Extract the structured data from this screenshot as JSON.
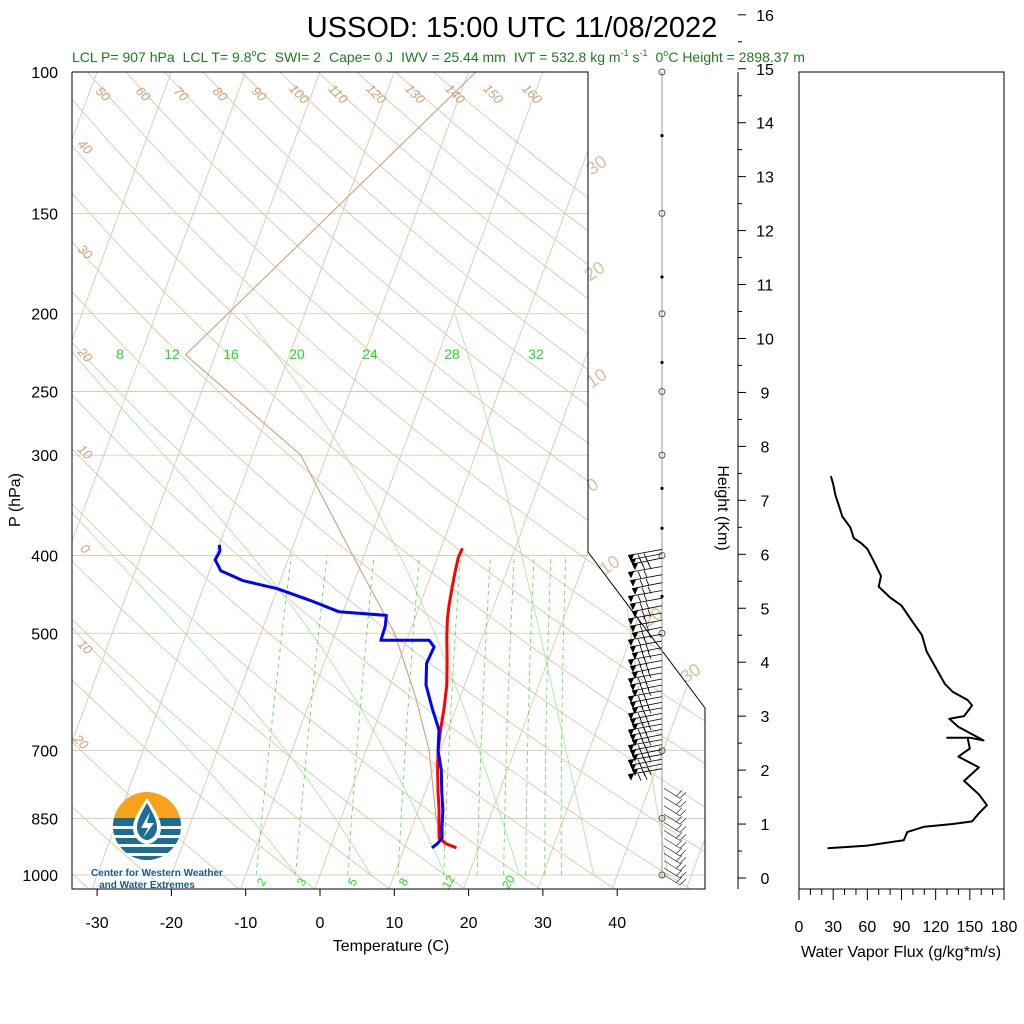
{
  "title": "USSOD: 15:00 UTC 11/08/2022",
  "subtitle": {
    "lcl_p": "LCL P= 907 hPa",
    "lcl_t_prefix": "LCL T= 9.8",
    "lcl_t_unit": "C",
    "swi": "SWI= 2",
    "cape": "Cape= 0 J",
    "iwv": "IWV = 25.44 mm",
    "ivt_prefix": "IVT = 532.8 kg m",
    "ivt_exp1": "-1",
    "ivt_mid": " s",
    "ivt_exp2": "-1",
    "zero_height": "0",
    "zero_height_rest": "C Height = 2898.37 m"
  },
  "logo": {
    "line1": "Center for Western Weather",
    "line2": "and Water Extremes",
    "color_orange": "#f7a21b",
    "color_blue": "#1c6d96"
  },
  "colors": {
    "temperature": "#ff0000",
    "dewpoint": "#0000ff",
    "isotherm": "#d7c2a6",
    "mixing_ratio": "#44dd44",
    "parcel": "#c8a888",
    "vapor_flux": "#000000"
  },
  "chart_data": [
    {
      "type": "line",
      "name": "skew-t",
      "xlabel": "Temperature (C)",
      "ylabel": "P (hPa)",
      "x_ticks": [
        -30,
        -20,
        -10,
        0,
        10,
        20,
        30,
        40
      ],
      "y_ticks": [
        100,
        150,
        200,
        250,
        300,
        400,
        500,
        700,
        850,
        1000
      ],
      "ylim": [
        1000,
        100
      ],
      "xlim": [
        -34,
        36
      ],
      "y_scale": "log",
      "isotherm_labels": [
        "50",
        "60",
        "70",
        "80",
        "90",
        "100",
        "110",
        "120",
        "130",
        "140",
        "150",
        "160",
        "40",
        "30",
        "20",
        "10",
        "0",
        "10",
        "20"
      ],
      "theta_labels": [
        "30",
        "20",
        "10",
        "0",
        "10",
        "20",
        "30"
      ],
      "mixing_ratio_labels_top": [
        "8",
        "12",
        "16",
        "20",
        "24",
        "28",
        "32"
      ],
      "mixing_ratio_labels_bottom": [
        "2",
        "3",
        "5",
        "8",
        "12",
        "20"
      ],
      "series": [
        {
          "name": "Temperature",
          "points": [
            [
              17.0,
              925
            ],
            [
              15.5,
              915
            ],
            [
              14.2,
              900
            ],
            [
              13.6,
              870
            ],
            [
              12.8,
              830
            ],
            [
              11.8,
              790
            ],
            [
              10.6,
              740
            ],
            [
              9.7,
              700
            ],
            [
              9.0,
              660
            ],
            [
              8.4,
              620
            ],
            [
              7.6,
              580
            ],
            [
              6.4,
              540
            ],
            [
              5.2,
              505
            ],
            [
              4.4,
              480
            ],
            [
              3.9,
              460
            ],
            [
              3.5,
              440
            ],
            [
              3.1,
              420
            ],
            [
              2.8,
              402
            ],
            [
              2.9,
              392
            ]
          ]
        },
        {
          "name": "Dewpoint",
          "points": [
            [
              13.7,
              925
            ],
            [
              14.2,
              915
            ],
            [
              14.6,
              900
            ],
            [
              14.0,
              870
            ],
            [
              13.3,
              830
            ],
            [
              12.3,
              790
            ],
            [
              11.1,
              740
            ],
            [
              9.7,
              700
            ],
            [
              8.8,
              660
            ],
            [
              6.8,
              620
            ],
            [
              4.8,
              580
            ],
            [
              3.8,
              545
            ],
            [
              4.0,
              520
            ],
            [
              3.0,
              510
            ],
            [
              -3.5,
              510
            ],
            [
              -3.6,
              490
            ],
            [
              -4.0,
              475
            ],
            [
              -10.6,
              470
            ],
            [
              -15.0,
              455
            ],
            [
              -20.0,
              440
            ],
            [
              -25.0,
              430
            ],
            [
              -28.5,
              418
            ],
            [
              -29.8,
              405
            ],
            [
              -29.6,
              395
            ],
            [
              -30.0,
              388
            ]
          ]
        }
      ],
      "parcel_profile": [
        [
          15.5,
          925
        ],
        [
          12.8,
          850
        ],
        [
          8.5,
          700
        ],
        [
          4.0,
          600
        ],
        [
          -2.0,
          500
        ],
        [
          -11.5,
          400
        ],
        [
          -23.5,
          300
        ],
        [
          -44.0,
          225
        ],
        [
          -19.0,
          100
        ]
      ],
      "wind_barbs": {
        "pressures_top": [
          400,
          405,
          410,
          420,
          430,
          440,
          450,
          460,
          470,
          480,
          490,
          500,
          510,
          520,
          530,
          540,
          550,
          560,
          570,
          580,
          590,
          600,
          610,
          620,
          630,
          640,
          650,
          660,
          670,
          680,
          690,
          700,
          710,
          720,
          730,
          740,
          750
        ],
        "pressures_bottom": [
          780,
          800,
          820,
          840,
          860,
          880,
          900,
          920,
          940,
          960,
          980,
          1000
        ]
      }
    },
    {
      "type": "line",
      "name": "water-vapor-flux",
      "xlabel": "Water Vapor Flux (g/kg*m/s)",
      "ylabel": "Height (Km)",
      "x_ticks": [
        0,
        30,
        60,
        90,
        120,
        150,
        180
      ],
      "xlim": [
        0,
        180
      ],
      "y_ticks": [
        0,
        1,
        2,
        3,
        4,
        5,
        6,
        7,
        8,
        9,
        10,
        11,
        12,
        13,
        14,
        15,
        16
      ],
      "ylim": [
        -0.2,
        16.4
      ],
      "series": [
        {
          "name": "",
          "points": [
            [
              25,
              0.55
            ],
            [
              60,
              0.6
            ],
            [
              92,
              0.7
            ],
            [
              95,
              0.85
            ],
            [
              110,
              0.95
            ],
            [
              135,
              1.0
            ],
            [
              152,
              1.05
            ],
            [
              158,
              1.2
            ],
            [
              165,
              1.35
            ],
            [
              158,
              1.55
            ],
            [
              145,
              1.8
            ],
            [
              158,
              2.05
            ],
            [
              140,
              2.25
            ],
            [
              150,
              2.4
            ],
            [
              148,
              2.6
            ],
            [
              130,
              2.6
            ],
            [
              150,
              2.6
            ],
            [
              162,
              2.55
            ],
            [
              140,
              2.8
            ],
            [
              132,
              2.95
            ],
            [
              145,
              3.0
            ],
            [
              152,
              3.2
            ],
            [
              148,
              3.3
            ],
            [
              135,
              3.45
            ],
            [
              128,
              3.6
            ],
            [
              120,
              3.9
            ],
            [
              112,
              4.2
            ],
            [
              108,
              4.5
            ],
            [
              98,
              4.8
            ],
            [
              90,
              5.05
            ],
            [
              80,
              5.2
            ],
            [
              70,
              5.4
            ],
            [
              72,
              5.6
            ],
            [
              65,
              5.9
            ],
            [
              60,
              6.1
            ],
            [
              55,
              6.2
            ],
            [
              48,
              6.3
            ],
            [
              45,
              6.5
            ],
            [
              38,
              6.7
            ],
            [
              35,
              6.9
            ],
            [
              32,
              7.1
            ],
            [
              30,
              7.3
            ],
            [
              28,
              7.45
            ]
          ]
        }
      ]
    }
  ]
}
